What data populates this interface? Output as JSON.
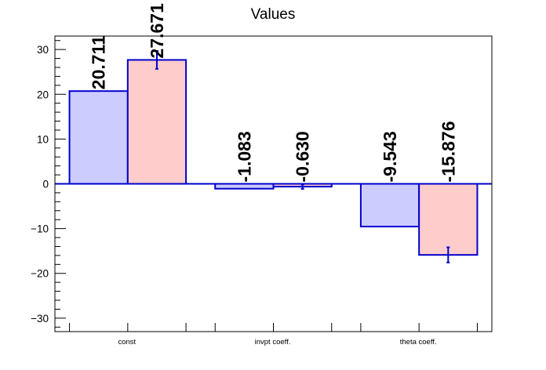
{
  "chart_data": {
    "type": "bar",
    "title": "Values",
    "xlabel": "",
    "ylabel": "",
    "categories": [
      "const",
      "invpt coeff.",
      "theta coeff."
    ],
    "series": [
      {
        "values": [
          20.711,
          -1.083,
          -9.543
        ],
        "errors": [
          0,
          0,
          0
        ],
        "labels": [
          "20.711",
          "-1.083",
          "-9.543"
        ],
        "fill": "#ccccff"
      },
      {
        "values": [
          27.671,
          -0.63,
          -15.876
        ],
        "errors": [
          2.0,
          0.5,
          1.7
        ],
        "labels": [
          "27.671",
          "-0.630",
          "-15.876"
        ],
        "fill": "#ffcccc"
      }
    ],
    "ylim": [
      -33,
      33
    ],
    "yticks": [
      -30,
      -20,
      -10,
      0,
      10,
      20,
      30
    ],
    "ytick_labels": [
      "−30",
      "−20",
      "−10",
      "0",
      "10",
      "20",
      "30"
    ],
    "grid": false,
    "legend": "none",
    "colors": {
      "outline": "#0000cc",
      "axis": "#000000"
    }
  }
}
